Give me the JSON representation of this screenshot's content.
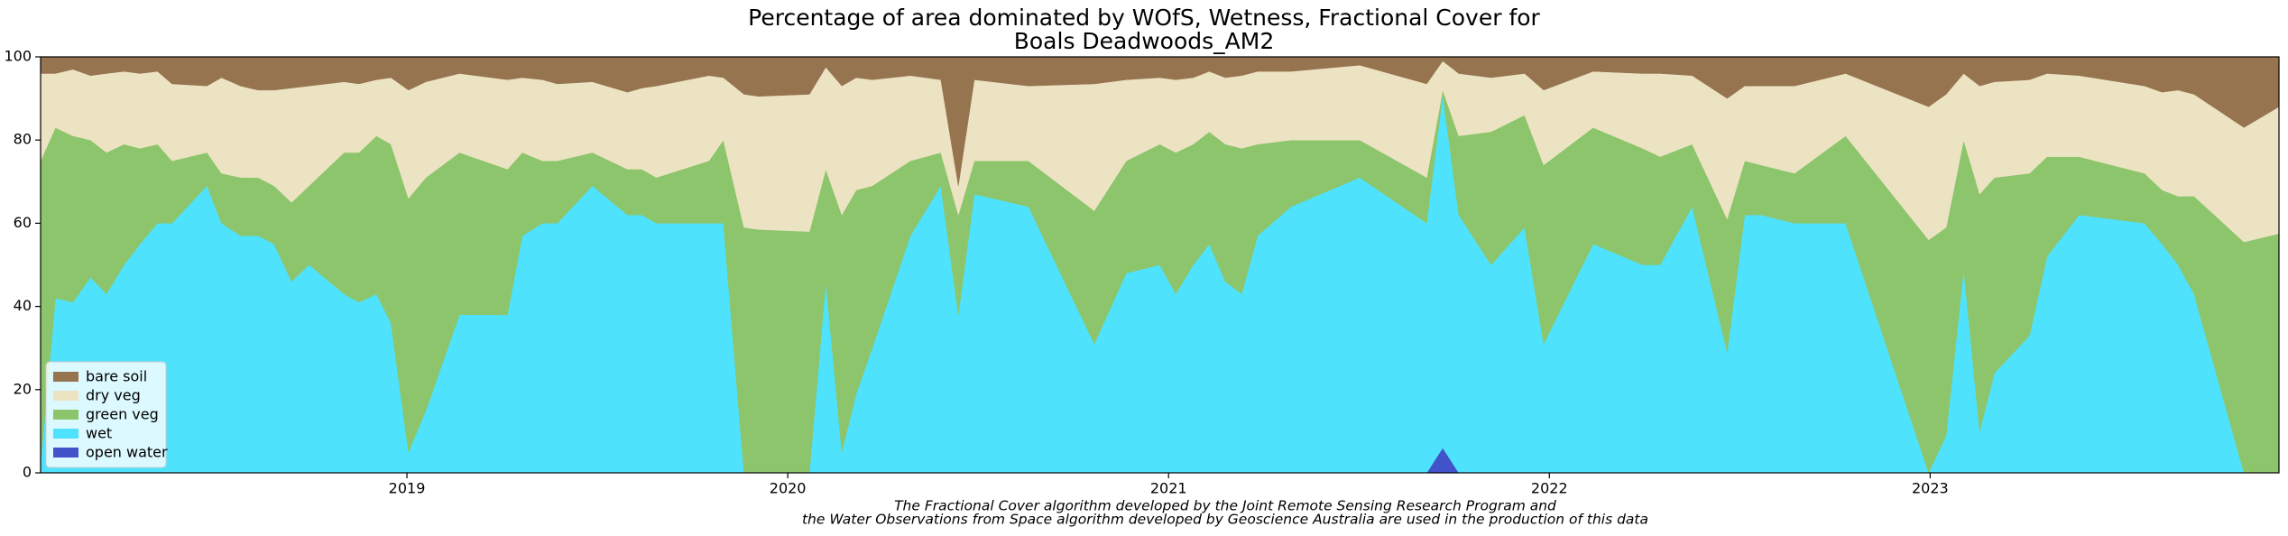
{
  "chart_data": {
    "type": "stackedarea",
    "title": [
      "Percentage of area dominated by WOfS, Wetness, Fractional Cover for",
      "Boals Deadwoods_AM2"
    ],
    "annotation": [
      "The Fractional Cover algorithm developed by the Joint Remote Sensing Research Program and",
      "the Water Observations from Space algorithm developed by Geoscience Australia are used in the production of this data"
    ],
    "x": [
      2018.038,
      2018.077,
      2018.123,
      2018.169,
      2018.211,
      2018.257,
      2018.299,
      2018.345,
      2018.383,
      2018.475,
      2018.513,
      2018.563,
      2018.609,
      2018.651,
      2018.697,
      2018.743,
      2018.835,
      2018.874,
      2018.92,
      2018.958,
      2019.004,
      2019.05,
      2019.138,
      2019.264,
      2019.303,
      2019.356,
      2019.395,
      2019.487,
      2019.579,
      2019.617,
      2019.655,
      2019.793,
      2019.831,
      2019.885,
      2019.923,
      2020.057,
      2020.1,
      2020.142,
      2020.18,
      2020.222,
      2020.322,
      2020.402,
      2020.448,
      2020.49,
      2020.632,
      2020.805,
      2020.889,
      2020.977,
      2021.019,
      2021.065,
      2021.107,
      2021.149,
      2021.192,
      2021.234,
      2021.322,
      2021.502,
      2021.678,
      2021.72,
      2021.762,
      2021.847,
      2021.935,
      2021.985,
      2022.115,
      2022.245,
      2022.291,
      2022.375,
      2022.467,
      2022.513,
      2022.556,
      2022.644,
      2022.778,
      2022.996,
      2023.042,
      2023.088,
      2023.13,
      2023.169,
      2023.261,
      2023.307,
      2023.391,
      2023.563,
      2023.609,
      2023.651,
      2023.693,
      2023.824,
      2023.916
    ],
    "series": [
      {
        "name": "open water",
        "color": "#4252c9",
        "values": [
          0,
          0,
          0,
          0,
          0,
          0,
          0,
          0,
          0,
          0,
          0,
          0,
          0,
          0,
          0,
          0,
          0,
          0,
          0,
          0,
          0,
          0,
          0,
          0,
          0,
          0,
          0,
          0,
          0,
          0,
          0,
          0,
          0,
          0,
          0,
          0,
          0,
          0,
          0,
          0,
          0,
          0,
          0,
          0,
          0,
          0,
          0,
          0,
          0,
          0,
          0,
          0,
          0,
          0,
          0,
          0,
          0,
          6,
          0,
          0,
          0,
          0,
          0,
          0,
          0,
          0,
          0,
          0,
          0,
          0,
          0,
          0,
          0,
          0,
          0,
          0,
          0,
          0,
          0,
          0,
          0,
          0,
          0,
          0,
          0
        ]
      },
      {
        "name": "wet",
        "color": "#4fe2fc",
        "values": [
          2,
          42,
          41,
          47,
          43,
          50,
          55,
          60,
          60,
          69,
          60,
          57,
          57,
          55,
          46,
          50,
          43,
          41,
          43,
          36,
          5,
          15,
          38,
          38,
          57,
          60,
          60,
          69,
          62,
          62,
          60,
          60,
          60,
          0,
          0,
          0,
          46,
          5,
          19,
          30,
          57,
          69,
          38,
          67,
          64,
          31,
          48,
          50,
          43,
          50,
          55,
          46,
          43,
          57,
          64,
          71,
          60,
          85,
          62,
          50,
          59,
          31,
          55,
          50,
          50,
          64,
          29,
          62,
          62,
          60,
          60,
          0,
          9,
          49,
          10,
          24,
          33,
          52,
          62,
          60,
          55,
          50,
          43,
          0,
          0
        ]
      },
      {
        "name": "green veg",
        "color": "#8cc56b",
        "values": [
          73,
          41,
          40,
          33,
          34,
          29,
          23,
          19,
          15,
          8,
          12,
          14,
          14,
          14,
          19,
          19,
          34,
          36,
          38,
          43,
          61,
          56,
          39,
          35,
          20,
          15,
          15,
          8,
          11,
          11,
          11,
          15,
          20,
          59,
          58.5,
          58,
          27,
          57,
          49,
          39,
          18,
          8,
          24,
          8,
          11,
          32,
          27,
          29,
          34,
          29,
          27,
          33,
          35,
          22,
          16,
          9,
          11,
          1,
          19,
          32,
          27,
          43,
          28,
          28,
          26,
          15,
          32,
          13,
          12,
          12,
          21,
          56,
          50,
          31,
          57,
          47,
          39,
          24,
          14,
          12,
          13,
          16.5,
          23.5,
          55.5,
          57.5
        ]
      },
      {
        "name": "dry veg",
        "color": "#ece3c3",
        "values": [
          21,
          13,
          16,
          15.5,
          19,
          17.5,
          18,
          17.5,
          18.5,
          16,
          23,
          22,
          21,
          23,
          27.5,
          24,
          17,
          16.5,
          13.5,
          16,
          26,
          23,
          19,
          21.5,
          18,
          19.5,
          18.5,
          17,
          18.5,
          19.5,
          22,
          20.5,
          15,
          32,
          32,
          33,
          24.5,
          31,
          27,
          25.5,
          20.5,
          17.5,
          7,
          19.5,
          18,
          30.5,
          19.5,
          16,
          17.5,
          16,
          14.5,
          16,
          17.5,
          17.5,
          16.5,
          18,
          22.5,
          7,
          15,
          13,
          10,
          18,
          13.5,
          18,
          20,
          16.5,
          29,
          18,
          19,
          21,
          15,
          32,
          32,
          16,
          26,
          23,
          22.5,
          20,
          19.5,
          21,
          23.5,
          25.5,
          24.5,
          27.5,
          30.5
        ]
      },
      {
        "name": "bare soil",
        "color": "#967450",
        "values": [
          4,
          4,
          3,
          4.5,
          4,
          3.5,
          4,
          3.5,
          6.5,
          7,
          5,
          7,
          8,
          8,
          7.5,
          7,
          6,
          6.5,
          5.5,
          5,
          8,
          6,
          4,
          5.5,
          5,
          5.5,
          6.5,
          6,
          8.5,
          7.5,
          7,
          4.5,
          5,
          9,
          9.5,
          9,
          2.5,
          7,
          5,
          5.5,
          4.5,
          5.5,
          31,
          5.5,
          7,
          6.5,
          5.5,
          5,
          5.5,
          5,
          3.5,
          5,
          4.5,
          3.5,
          3.5,
          2,
          6.5,
          1,
          4,
          5,
          4,
          8,
          3.5,
          4,
          4,
          4.5,
          10,
          7,
          7,
          7,
          4,
          12,
          9,
          4,
          7,
          6,
          5.5,
          4,
          4.5,
          7,
          8.5,
          8,
          9,
          17,
          12
        ]
      }
    ],
    "xlim": [
      2018.038,
      2023.916
    ],
    "xticks": [
      2019,
      2020,
      2021,
      2022,
      2023
    ],
    "ylim": [
      0,
      100
    ],
    "yticks": [
      0,
      20,
      40,
      60,
      80,
      100
    ],
    "legend": "lower left",
    "grid": false
  }
}
